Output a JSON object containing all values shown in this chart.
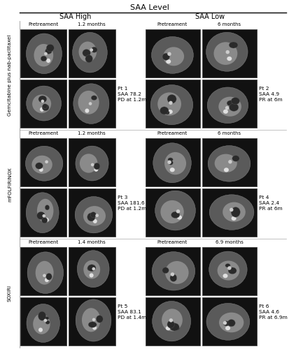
{
  "title": "SAA Level",
  "col_headers": [
    "SAA High",
    "SAA Low"
  ],
  "row_labels": [
    "Gemcitabine plus nab-paclitaxel",
    "mFOLFIRINOX",
    "SOXIRI"
  ],
  "row_time_high": [
    "1.2 months",
    "1.2 months",
    "1.4 months"
  ],
  "row_time_low": [
    "6 months",
    "6 months",
    "6.9 months"
  ],
  "patient_labels": [
    {
      "text": "Pt 1\nSAA 78.2\nPD at 1.2m",
      "col": "high",
      "row": 0
    },
    {
      "text": "Pt 2\nSAA 4.9\nPR at 6m",
      "col": "low",
      "row": 0
    },
    {
      "text": "Pt 3\nSAA 181.6\nPD at 1.2m",
      "col": "high",
      "row": 1
    },
    {
      "text": "Pt 4\nSAA 2.4\nPR at 6m",
      "col": "low",
      "row": 1
    },
    {
      "text": "Pt 5\nSAA 83.1\nPD at 1.4m",
      "col": "high",
      "row": 2
    },
    {
      "text": "Pt 6\nSAA 4.6\nPR at 6.9m",
      "col": "low",
      "row": 2
    }
  ],
  "bg_color": "#ffffff",
  "text_color": "#000000",
  "line_color": "#000000",
  "ct_bg": "#1a1a1a",
  "ct_organ": "#787878",
  "ct_bright": "#d0d0d0",
  "ct_mid": "#505050"
}
